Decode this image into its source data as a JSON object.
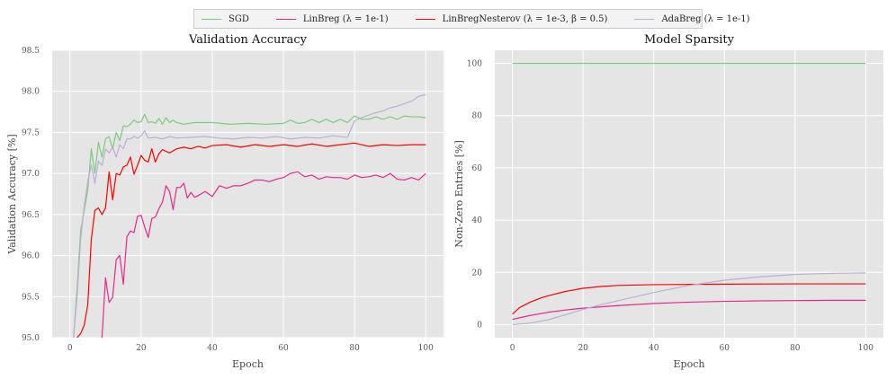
{
  "legend": [
    {
      "label": "SGD",
      "color": "#7fc97f"
    },
    {
      "label": "LinBreg (λ = 1e-1)",
      "color": "#e7298a"
    },
    {
      "label": "LinBregNesterov (λ = 1e-3, β = 0.5)",
      "color": "#ff0000"
    },
    {
      "label": "AdaBreg (λ = 1e-1)",
      "color": "#beaed4"
    }
  ],
  "chart_data": [
    {
      "type": "line",
      "title": "Validation Accuracy",
      "xlabel": "Epoch",
      "ylabel": "Validation Accuracy [%]",
      "xlim": [
        -5,
        105
      ],
      "ylim": [
        95.0,
        98.5
      ],
      "xticks": [
        0,
        20,
        40,
        60,
        80,
        100
      ],
      "yticks": [
        95.0,
        95.5,
        96.0,
        96.5,
        97.0,
        97.5,
        98.0,
        98.5
      ],
      "ytick_labels": [
        "95.0",
        "95.5",
        "96.0",
        "96.5",
        "97.0",
        "97.5",
        "98.0",
        "98.5"
      ],
      "grid": true,
      "series": [
        {
          "name": "SGD",
          "color": "#7fc97f",
          "x": [
            1,
            2,
            3,
            5,
            6,
            7,
            8,
            9,
            10,
            11,
            12,
            13,
            14,
            15,
            16,
            17,
            18,
            19,
            20,
            21,
            22,
            23,
            24,
            25,
            26,
            27,
            28,
            29,
            30,
            32,
            35,
            40,
            45,
            50,
            55,
            60,
            62,
            64,
            66,
            68,
            70,
            72,
            74,
            76,
            78,
            80,
            82,
            84,
            86,
            88,
            90,
            92,
            94,
            96,
            98,
            100
          ],
          "y": [
            95.0,
            95.6,
            96.3,
            96.8,
            97.3,
            97.0,
            97.38,
            97.2,
            97.42,
            97.45,
            97.3,
            97.5,
            97.4,
            97.58,
            97.57,
            97.6,
            97.65,
            97.62,
            97.63,
            97.72,
            97.62,
            97.63,
            97.61,
            97.67,
            97.6,
            97.68,
            97.62,
            97.65,
            97.62,
            97.6,
            97.62,
            97.62,
            97.6,
            97.61,
            97.6,
            97.61,
            97.65,
            97.61,
            97.62,
            97.66,
            97.62,
            97.66,
            97.62,
            97.66,
            97.62,
            97.7,
            97.66,
            97.66,
            97.69,
            97.66,
            97.69,
            97.66,
            97.7,
            97.69,
            97.69,
            97.68
          ]
        },
        {
          "name": "LinBreg (λ = 1e-1)",
          "color": "#e7298a",
          "x": [
            9,
            10,
            11,
            12,
            13,
            14,
            15,
            16,
            17,
            18,
            19,
            20,
            21,
            22,
            23,
            24,
            25,
            26,
            27,
            28,
            29,
            30,
            31,
            32,
            33,
            34,
            35,
            36,
            38,
            40,
            42,
            44,
            46,
            48,
            50,
            52,
            54,
            56,
            58,
            60,
            62,
            64,
            66,
            68,
            70,
            72,
            74,
            76,
            78,
            80,
            82,
            84,
            86,
            88,
            90,
            92,
            94,
            96,
            98,
            100
          ],
          "y": [
            95.0,
            95.73,
            95.43,
            95.49,
            95.95,
            96.0,
            95.65,
            96.23,
            96.3,
            96.28,
            96.48,
            96.49,
            96.35,
            96.22,
            96.45,
            96.47,
            96.57,
            96.65,
            96.85,
            96.78,
            96.56,
            96.83,
            96.83,
            96.88,
            96.7,
            96.77,
            96.71,
            96.73,
            96.78,
            96.72,
            96.85,
            96.82,
            96.85,
            96.85,
            96.88,
            96.92,
            96.92,
            96.9,
            96.93,
            96.95,
            97.0,
            97.02,
            96.96,
            96.98,
            96.93,
            96.96,
            96.95,
            96.95,
            96.93,
            96.98,
            96.95,
            96.96,
            96.98,
            96.95,
            97.0,
            96.93,
            96.92,
            96.95,
            96.92,
            97.0
          ]
        },
        {
          "name": "LinBregNesterov (λ = 1e-3, β = 0.5)",
          "color": "#ff0000",
          "x": [
            2,
            3,
            4,
            5,
            6,
            7,
            8,
            9,
            10,
            11,
            12,
            13,
            14,
            15,
            16,
            17,
            18,
            19,
            20,
            21,
            22,
            23,
            24,
            25,
            26,
            28,
            30,
            32,
            34,
            36,
            38,
            40,
            44,
            48,
            52,
            56,
            60,
            64,
            68,
            72,
            76,
            80,
            84,
            88,
            92,
            96,
            100
          ],
          "y": [
            95.0,
            95.05,
            95.15,
            95.4,
            96.2,
            96.55,
            96.58,
            96.5,
            96.58,
            97.02,
            96.68,
            97.0,
            96.98,
            97.08,
            97.1,
            97.2,
            96.99,
            97.1,
            97.22,
            97.16,
            97.14,
            97.3,
            97.14,
            97.24,
            97.29,
            97.25,
            97.3,
            97.32,
            97.3,
            97.33,
            97.31,
            97.34,
            97.35,
            97.32,
            97.35,
            97.33,
            97.35,
            97.33,
            97.36,
            97.33,
            97.35,
            97.37,
            97.33,
            97.35,
            97.34,
            97.35,
            97.35
          ]
        },
        {
          "name": "AdaBreg (λ = 1e-1)",
          "color": "#beaed4",
          "x": [
            1,
            2,
            3,
            4,
            5,
            6,
            7,
            8,
            9,
            10,
            11,
            12,
            13,
            14,
            15,
            16,
            17,
            18,
            19,
            20,
            21,
            22,
            24,
            26,
            28,
            30,
            34,
            38,
            42,
            46,
            50,
            54,
            58,
            62,
            66,
            70,
            74,
            78,
            80,
            82,
            84,
            86,
            88,
            90,
            92,
            94,
            96,
            98,
            100
          ],
          "y": [
            95.0,
            95.5,
            96.2,
            96.6,
            96.9,
            97.1,
            96.88,
            97.15,
            97.1,
            97.3,
            97.25,
            97.32,
            97.2,
            97.35,
            97.3,
            97.42,
            97.42,
            97.45,
            97.43,
            97.46,
            97.52,
            97.43,
            97.44,
            97.42,
            97.45,
            97.43,
            97.44,
            97.45,
            97.43,
            97.42,
            97.44,
            97.43,
            97.45,
            97.42,
            97.44,
            97.43,
            97.46,
            97.44,
            97.64,
            97.68,
            97.71,
            97.74,
            97.76,
            97.8,
            97.82,
            97.85,
            97.88,
            97.94,
            97.96
          ]
        }
      ]
    },
    {
      "type": "line",
      "title": "Model Sparsity",
      "xlabel": "Epoch",
      "ylabel": "Non-Zero Entries [%]",
      "xlim": [
        -5,
        105
      ],
      "ylim": [
        -5,
        105
      ],
      "xticks": [
        0,
        20,
        40,
        60,
        80,
        100
      ],
      "yticks": [
        0,
        20,
        40,
        60,
        80,
        100
      ],
      "ytick_labels": [
        "0",
        "20",
        "40",
        "60",
        "80",
        "100"
      ],
      "grid": true,
      "series": [
        {
          "name": "SGD",
          "color": "#7fc97f",
          "x": [
            0,
            100
          ],
          "y": [
            100,
            100
          ]
        },
        {
          "name": "LinBreg (λ = 1e-1)",
          "color": "#e7298a",
          "x": [
            0,
            5,
            10,
            15,
            20,
            30,
            40,
            50,
            60,
            70,
            80,
            90,
            100
          ],
          "y": [
            2.0,
            3.5,
            4.7,
            5.6,
            6.3,
            7.3,
            8.1,
            8.6,
            8.9,
            9.1,
            9.2,
            9.3,
            9.3
          ]
        },
        {
          "name": "LinBregNesterov (λ = 1e-3, β = 0.5)",
          "color": "#ff0000",
          "x": [
            0,
            2,
            5,
            8,
            10,
            15,
            20,
            25,
            30,
            40,
            50,
            60,
            80,
            100
          ],
          "y": [
            4.0,
            6.5,
            8.6,
            10.2,
            11.0,
            12.7,
            13.9,
            14.6,
            15.0,
            15.3,
            15.4,
            15.5,
            15.6,
            15.6
          ]
        },
        {
          "name": "AdaBreg (λ = 1e-1)",
          "color": "#beaed4",
          "x": [
            0,
            5,
            10,
            15,
            20,
            25,
            30,
            40,
            50,
            60,
            70,
            80,
            90,
            100
          ],
          "y": [
            0.0,
            0.6,
            1.8,
            3.8,
            5.8,
            7.6,
            9.2,
            12.3,
            15.0,
            17.0,
            18.3,
            19.2,
            19.6,
            19.8
          ]
        }
      ]
    }
  ]
}
